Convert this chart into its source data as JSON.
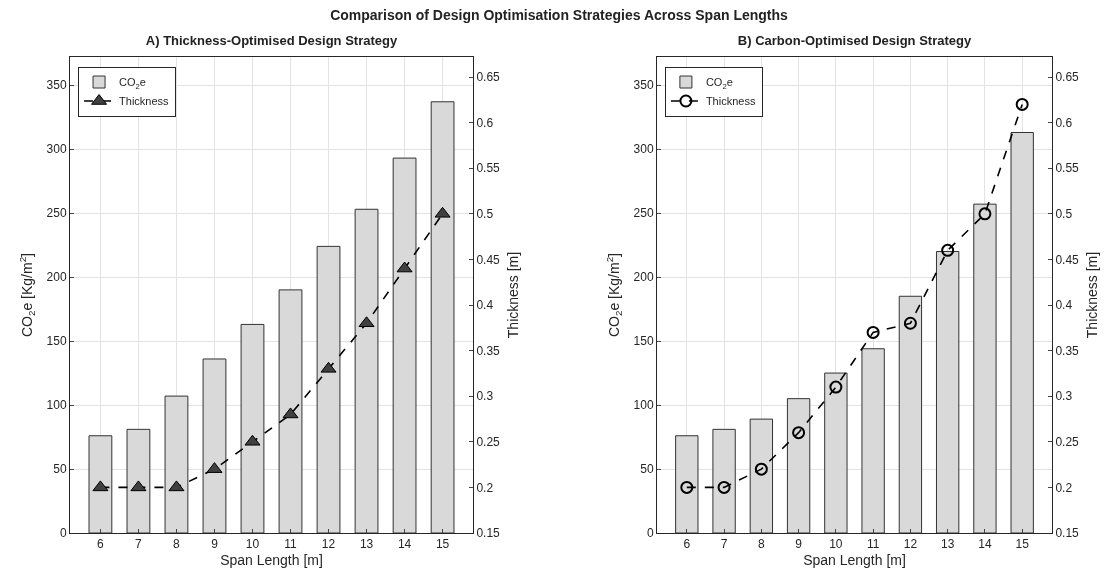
{
  "chart_data": [
    {
      "type": "bar",
      "title": "A) Thickness-Optimised Design Strategy",
      "xlabel": "Span Length [m]",
      "ylabel": "CO$_{2}$e [Kg/m$^{2}$]",
      "y2label": "Thickness [m]",
      "annotations": [
        "Comparison of Design Optimisation Strategies Across Span Lengths"
      ],
      "categories": [
        "6",
        "7",
        "8",
        "9",
        "10",
        "11",
        "12",
        "13",
        "14",
        "15"
      ],
      "series": [
        {
          "name": "CO$_{2}$e",
          "color": "#d9d9d9",
          "values": [
            76,
            81,
            107,
            136,
            163,
            190,
            224,
            253,
            293,
            337
          ]
        },
        {
          "name": "Thickness",
          "type": "line",
          "axis": "y2",
          "color": "#000000",
          "marker": "triangle",
          "line_style": "dashed",
          "values": [
            0.2,
            0.2,
            0.2,
            0.22,
            0.25,
            0.28,
            0.33,
            0.38,
            0.44,
            0.5
          ]
        }
      ],
      "ylim": [
        0,
        372
      ],
      "yticks": [
        0,
        50,
        100,
        150,
        200,
        250,
        300,
        350
      ],
      "y2lim": [
        0.15,
        0.672
      ],
      "y2ticks": [
        0.15,
        0.2,
        0.25,
        0.3,
        0.35,
        0.4,
        0.45,
        0.5,
        0.55,
        0.6,
        0.65
      ],
      "grid": true,
      "legend": "top left"
    },
    {
      "type": "bar",
      "title": "B) Carbon-Optimised Design Strategy",
      "xlabel": "Span Length [m]",
      "ylabel": "CO$_{2}$e [Kg/m$^{2}$]",
      "y2label": "Thickness [m]",
      "categories": [
        "6",
        "7",
        "8",
        "9",
        "10",
        "11",
        "12",
        "13",
        "14",
        "15"
      ],
      "series": [
        {
          "name": "CO$_{2}$e",
          "color": "#d9d9d9",
          "values": [
            76,
            81,
            89,
            105,
            125,
            144,
            185,
            220,
            257,
            313
          ]
        },
        {
          "name": "Thickness",
          "type": "line",
          "axis": "y2",
          "color": "#000000",
          "marker": "circle",
          "line_style": "dashed",
          "values": [
            0.2,
            0.2,
            0.22,
            0.26,
            0.31,
            0.37,
            0.38,
            0.46,
            0.5,
            0.62
          ]
        }
      ],
      "ylim": [
        0,
        372
      ],
      "yticks": [
        0,
        50,
        100,
        150,
        200,
        250,
        300,
        350
      ],
      "y2lim": [
        0.15,
        0.672
      ],
      "y2ticks": [
        0.15,
        0.2,
        0.25,
        0.3,
        0.35,
        0.4,
        0.45,
        0.5,
        0.55,
        0.6,
        0.65
      ],
      "grid": true,
      "legend": "top left"
    }
  ]
}
